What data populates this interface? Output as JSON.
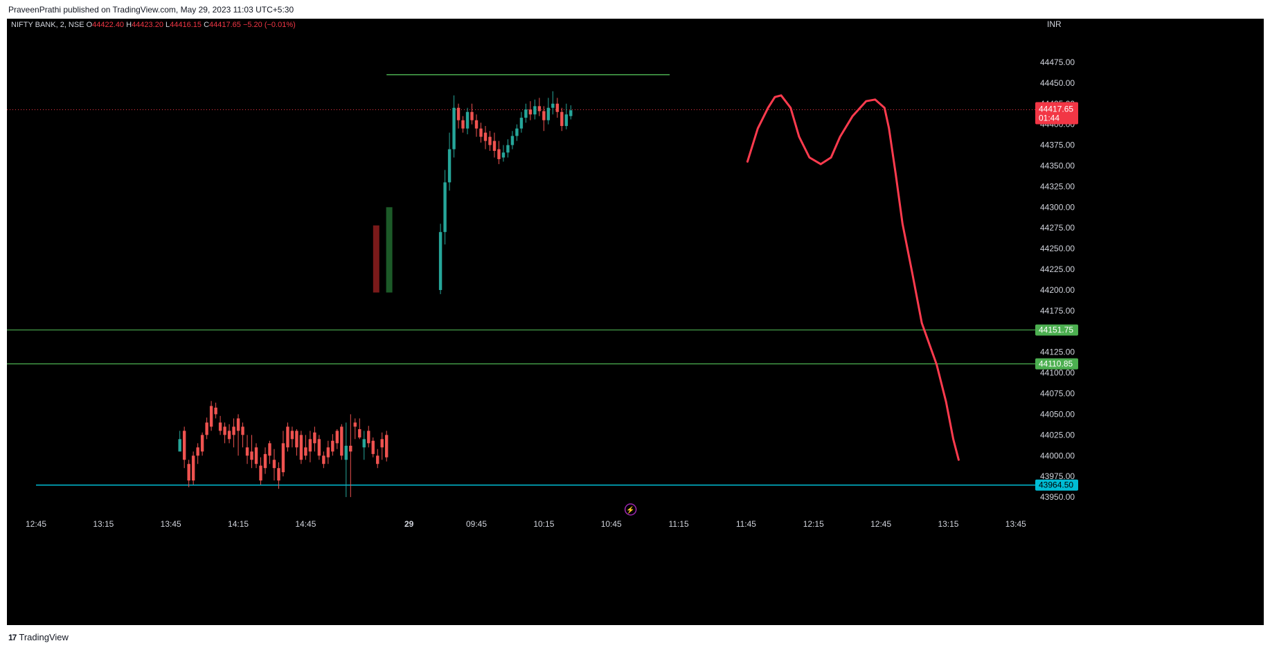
{
  "header": {
    "published_text": "PraveenPrathi published on TradingView.com, May 29, 2023 11:03 UTC+5:30"
  },
  "footer": {
    "logo_glyph": "17",
    "brand": "TradingView"
  },
  "colors": {
    "up": "#26a69a",
    "down": "#ef5350",
    "bg": "#000000",
    "level_line": "#4caf50",
    "support_line": "#00bcd4",
    "drawing": "#ff3b4e",
    "last_price_bg": "#f23645",
    "text": "#d1d4dc",
    "ohlc_value": "#f23645"
  },
  "chart_data": {
    "type": "candlestick",
    "symbol_label": "NIFTY BANK, 2, NSE",
    "ohlc": {
      "O": "44422.40",
      "H": "44423.20",
      "L": "44416.15",
      "C": "44417.65",
      "change": "−5.20 (−0.01%)"
    },
    "currency": "INR",
    "y_range": [
      43925,
      44495
    ],
    "y_ticks": [
      43950,
      43975,
      44000,
      44025,
      44050,
      44075,
      44100,
      44125,
      44150,
      44175,
      44200,
      44225,
      44250,
      44275,
      44300,
      44325,
      44350,
      44375,
      44400,
      44425,
      44450,
      44475
    ],
    "y_tick_labels": [
      "43950.00",
      "43975.00",
      "44000.00",
      "44025.00",
      "44050.00",
      "44075.00",
      "44100.00",
      "44125.00",
      "44150.00",
      "44175.00",
      "44200.00",
      "44225.00",
      "44250.00",
      "44275.00",
      "44300.00",
      "44325.00",
      "44350.00",
      "44375.00",
      "44400.00",
      "44425.00",
      "44450.00",
      "44475.00"
    ],
    "x_ticks": [
      {
        "i": 0,
        "label": "12:45"
      },
      {
        "i": 15,
        "label": "13:15"
      },
      {
        "i": 30,
        "label": "13:45"
      },
      {
        "i": 45,
        "label": "14:15"
      },
      {
        "i": 60,
        "label": "14:45"
      },
      {
        "i": 83,
        "label": "29"
      },
      {
        "i": 98,
        "label": "09:45"
      },
      {
        "i": 113,
        "label": "10:15"
      },
      {
        "i": 128,
        "label": "10:45"
      },
      {
        "i": 143,
        "label": "11:15"
      },
      {
        "i": 158,
        "label": "11:45"
      },
      {
        "i": 173,
        "label": "12:15"
      },
      {
        "i": 188,
        "label": "12:45"
      },
      {
        "i": 203,
        "label": "13:15"
      },
      {
        "i": 218,
        "label": "13:45"
      }
    ],
    "candles_day1": [
      [
        44005,
        44020,
        44015,
        44030
      ],
      [
        44030,
        43995,
        44035,
        43985
      ],
      [
        43990,
        43970,
        43995,
        43962
      ],
      [
        44000,
        43970,
        44005,
        43965
      ],
      [
        44010,
        44000,
        44015,
        43990
      ],
      [
        44025,
        44005,
        44028,
        44000
      ],
      [
        44040,
        44025,
        44046,
        44020
      ],
      [
        44060,
        44035,
        44066,
        44030
      ],
      [
        44058,
        44050,
        44064,
        44045
      ],
      [
        44040,
        44030,
        44048,
        44025
      ],
      [
        44035,
        44025,
        44040,
        44015
      ],
      [
        44030,
        44020,
        44038,
        44015
      ],
      [
        44035,
        44025,
        44045,
        44010
      ],
      [
        44045,
        44030,
        44050,
        44000
      ],
      [
        44035,
        44025,
        44040,
        44010
      ],
      [
        44010,
        44000,
        44025,
        43990
      ],
      [
        44005,
        43995,
        44025,
        43985
      ],
      [
        44010,
        43990,
        44015,
        43985
      ],
      [
        43988,
        43970,
        43998,
        43965
      ],
      [
        44002,
        43985,
        44010,
        43978
      ],
      [
        44015,
        44000,
        44018,
        43990
      ],
      [
        43995,
        43985,
        44008,
        43970
      ],
      [
        43985,
        43970,
        43992,
        43960
      ],
      [
        44015,
        43980,
        44030,
        43975
      ],
      [
        44035,
        44010,
        44040,
        44005
      ],
      [
        44030,
        44020,
        44035,
        44010
      ],
      [
        44030,
        44010,
        44032,
        44000
      ],
      [
        44025,
        43995,
        44030,
        43990
      ],
      [
        44010,
        44000,
        44025,
        43995
      ],
      [
        44020,
        44005,
        44030,
        43992
      ],
      [
        44028,
        44015,
        44035,
        44005
      ],
      [
        44020,
        44000,
        44025,
        43995
      ],
      [
        44000,
        43990,
        44005,
        43985
      ],
      [
        44010,
        43998,
        44018,
        43990
      ],
      [
        44018,
        44005,
        44026,
        44000
      ],
      [
        44030,
        44015,
        44032,
        44008
      ],
      [
        44035,
        44000,
        44038,
        43995
      ],
      [
        43995,
        44012,
        44040,
        43950
      ],
      [
        44012,
        44005,
        44050,
        43950
      ],
      [
        44040,
        44035,
        44045,
        44020
      ],
      [
        44032,
        44022,
        44045,
        44020
      ],
      [
        44010,
        44020,
        44030,
        43995
      ],
      [
        44030,
        44015,
        44036,
        44010
      ],
      [
        44018,
        44002,
        44022,
        43998
      ],
      [
        44000,
        43990,
        44008,
        43985
      ],
      [
        44020,
        44010,
        44028,
        43995
      ],
      [
        44025,
        43998,
        44030,
        43993
      ]
    ],
    "candles_day2": [
      [
        44200,
        44270,
        44280,
        44195
      ],
      [
        44270,
        44330,
        44345,
        44255
      ],
      [
        44330,
        44370,
        44390,
        44320
      ],
      [
        44370,
        44420,
        44435,
        44360
      ],
      [
        44420,
        44405,
        44425,
        44395
      ],
      [
        44405,
        44395,
        44410,
        44390
      ],
      [
        44395,
        44415,
        44420,
        44388
      ],
      [
        44415,
        44405,
        44425,
        44400
      ],
      [
        44405,
        44395,
        44412,
        44385
      ],
      [
        44395,
        44385,
        44402,
        44378
      ],
      [
        44390,
        44380,
        44398,
        44370
      ],
      [
        44385,
        44375,
        44392,
        44368
      ],
      [
        44380,
        44368,
        44390,
        44360
      ],
      [
        44370,
        44358,
        44380,
        44352
      ],
      [
        44360,
        44366,
        44375,
        44355
      ],
      [
        44366,
        44375,
        44382,
        44360
      ],
      [
        44375,
        44386,
        44392,
        44370
      ],
      [
        44386,
        44395,
        44400,
        44380
      ],
      [
        44395,
        44408,
        44415,
        44390
      ],
      [
        44408,
        44418,
        44425,
        44402
      ],
      [
        44418,
        44412,
        44428,
        44405
      ],
      [
        44412,
        44422,
        44430,
        44406
      ],
      [
        44422,
        44416,
        44432,
        44410
      ],
      [
        44416,
        44405,
        44422,
        44392
      ],
      [
        44405,
        44420,
        44432,
        44400
      ],
      [
        44420,
        44425,
        44440,
        44412
      ],
      [
        44425,
        44415,
        44432,
        44408
      ],
      [
        44415,
        44398,
        44420,
        44392
      ],
      [
        44398,
        44412,
        44425,
        44394
      ],
      [
        44410,
        44417,
        44423,
        44406
      ]
    ],
    "level_lines": [
      {
        "value": 44151.75,
        "label": "44151.75"
      },
      {
        "value": 44110.85,
        "label": "44110.85"
      }
    ],
    "support_line": {
      "value": 43964.5,
      "label": "43964.50"
    },
    "top_line": {
      "value": 44460,
      "from_i": 78,
      "to_i": 141
    },
    "last_price": {
      "value": 44417.65,
      "label": "44417.65",
      "countdown": "01:44"
    },
    "drawn_projection": [
      [
        44355,
        158.3
      ],
      [
        44395,
        160.6
      ],
      [
        44420,
        162.9
      ],
      [
        44433,
        164.4
      ],
      [
        44435,
        165.8
      ],
      [
        44420,
        167.9
      ],
      [
        44385,
        169.8
      ],
      [
        44360,
        172.1
      ],
      [
        44352,
        174.6
      ],
      [
        44360,
        176.9
      ],
      [
        44385,
        178.9
      ],
      [
        44410,
        181.7
      ],
      [
        44428,
        184.7
      ],
      [
        44430,
        186.7
      ],
      [
        44420,
        188.8
      ],
      [
        44395,
        189.8
      ],
      [
        44340,
        191.3
      ],
      [
        44280,
        192.8
      ],
      [
        44220,
        195.0
      ],
      [
        44160,
        197.1
      ],
      [
        44110,
        200.4
      ],
      [
        44065,
        202.5
      ],
      [
        44020,
        204.1
      ],
      [
        43995,
        205.3
      ]
    ],
    "bar_blocks": [
      {
        "i": 75.7,
        "top": 44278,
        "bottom": 44197,
        "color": "#7a1a1a"
      },
      {
        "i": 78.6,
        "top": 44300,
        "bottom": 44197,
        "color": "#1c5a28"
      }
    ],
    "event_marker": {
      "i": 132.3,
      "glyph": "⚡"
    }
  }
}
